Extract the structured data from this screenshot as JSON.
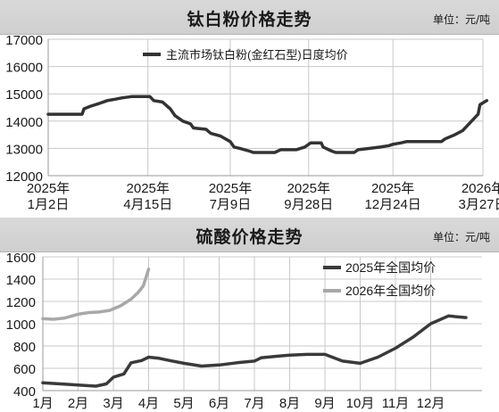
{
  "chart_data": [
    {
      "type": "line",
      "title": "钛白粉价格走势",
      "unit_label": "单位：元/吨",
      "ylim": [
        12000,
        17000
      ],
      "yticks": [
        12000,
        13000,
        14000,
        15000,
        16000,
        17000
      ],
      "grid": true,
      "legend_position": "top-center",
      "x_ticks": [
        {
          "line1": "2025年",
          "line2": "1月2日",
          "date": "2025-01-02"
        },
        {
          "line1": "2025年",
          "line2": "4月15日",
          "date": "2025-04-15"
        },
        {
          "line1": "2025年",
          "line2": "7月9日",
          "date": "2025-07-09"
        },
        {
          "line1": "2025年",
          "line2": "9月28日",
          "date": "2025-09-28"
        },
        {
          "line1": "2025年",
          "line2": "12月24日",
          "date": "2025-12-24"
        },
        {
          "line1": "2026年",
          "line2": "3月27日",
          "date": "2026-03-27"
        }
      ],
      "series": [
        {
          "name": "主流市场钛白粉(金红石型)日度均价",
          "color": "#333333",
          "points": [
            [
              "2025-01-02",
              14250
            ],
            [
              "2025-02-06",
              14250
            ],
            [
              "2025-02-08",
              14450
            ],
            [
              "2025-02-15",
              14550
            ],
            [
              "2025-02-24",
              14650
            ],
            [
              "2025-03-04",
              14750
            ],
            [
              "2025-03-12",
              14800
            ],
            [
              "2025-03-19",
              14850
            ],
            [
              "2025-03-29",
              14900
            ],
            [
              "2025-04-17",
              14900
            ],
            [
              "2025-04-21",
              14750
            ],
            [
              "2025-04-30",
              14700
            ],
            [
              "2025-05-08",
              14450
            ],
            [
              "2025-05-13",
              14200
            ],
            [
              "2025-05-21",
              14000
            ],
            [
              "2025-05-29",
              13900
            ],
            [
              "2025-06-01",
              13750
            ],
            [
              "2025-06-14",
              13700
            ],
            [
              "2025-06-19",
              13550
            ],
            [
              "2025-06-29",
              13450
            ],
            [
              "2025-07-09",
              13250
            ],
            [
              "2025-07-13",
              13050
            ],
            [
              "2025-07-19",
              13000
            ],
            [
              "2025-07-29",
              12900
            ],
            [
              "2025-08-02",
              12850
            ],
            [
              "2025-08-24",
              12850
            ],
            [
              "2025-08-30",
              12950
            ],
            [
              "2025-09-02",
              12950
            ],
            [
              "2025-09-15",
              12950
            ],
            [
              "2025-09-24",
              13050
            ],
            [
              "2025-09-30",
              13200
            ],
            [
              "2025-10-11",
              13200
            ],
            [
              "2025-10-13",
              13050
            ],
            [
              "2025-10-22",
              12900
            ],
            [
              "2025-10-26",
              12850
            ],
            [
              "2025-11-14",
              12850
            ],
            [
              "2025-11-18",
              12950
            ],
            [
              "2025-11-30",
              13000
            ],
            [
              "2025-12-11",
              13050
            ],
            [
              "2025-12-20",
              13100
            ],
            [
              "2025-12-24",
              13150
            ],
            [
              "2026-01-01",
              13200
            ],
            [
              "2026-01-07",
              13250
            ],
            [
              "2026-02-12",
              13250
            ],
            [
              "2026-02-16",
              13350
            ],
            [
              "2026-02-26",
              13500
            ],
            [
              "2026-03-06",
              13650
            ],
            [
              "2026-03-14",
              13950
            ],
            [
              "2026-03-22",
              14250
            ],
            [
              "2026-03-24",
              14600
            ],
            [
              "2026-03-31",
              14750
            ]
          ]
        }
      ]
    },
    {
      "type": "line",
      "title": "硫酸价格走势",
      "unit_label": "单位：元/吨",
      "ylim": [
        400,
        1600
      ],
      "yticks": [
        400,
        600,
        800,
        1000,
        1200,
        1400,
        1600
      ],
      "grid": true,
      "legend_position": "top-right",
      "categories": [
        "1月",
        "2月",
        "3月",
        "4月",
        "5月",
        "6月",
        "7月",
        "8月",
        "9月",
        "10月",
        "11月",
        "12月"
      ],
      "series": [
        {
          "name": "2025年全国均价",
          "color": "#3a3a3a",
          "points": [
            [
              1.0,
              470
            ],
            [
              1.5,
              460
            ],
            [
              2.0,
              450
            ],
            [
              2.5,
              440
            ],
            [
              2.8,
              460
            ],
            [
              3.0,
              520
            ],
            [
              3.3,
              550
            ],
            [
              3.5,
              650
            ],
            [
              3.8,
              670
            ],
            [
              4.0,
              700
            ],
            [
              4.3,
              690
            ],
            [
              4.6,
              670
            ],
            [
              5.0,
              645
            ],
            [
              5.5,
              620
            ],
            [
              6.0,
              630
            ],
            [
              6.5,
              650
            ],
            [
              7.0,
              665
            ],
            [
              7.2,
              695
            ],
            [
              7.7,
              710
            ],
            [
              8.0,
              718
            ],
            [
              8.5,
              725
            ],
            [
              9.0,
              725
            ],
            [
              9.5,
              665
            ],
            [
              10.0,
              645
            ],
            [
              10.5,
              700
            ],
            [
              11.0,
              780
            ],
            [
              11.5,
              880
            ],
            [
              12.0,
              1000
            ],
            [
              12.5,
              1070
            ],
            [
              13.0,
              1055
            ]
          ]
        },
        {
          "name": "2026年全国均价",
          "color": "#a8a8a8",
          "points": [
            [
              1.0,
              1045
            ],
            [
              1.3,
              1040
            ],
            [
              1.6,
              1050
            ],
            [
              2.0,
              1085
            ],
            [
              2.3,
              1100
            ],
            [
              2.6,
              1105
            ],
            [
              2.9,
              1120
            ],
            [
              3.2,
              1160
            ],
            [
              3.5,
              1220
            ],
            [
              3.7,
              1280
            ],
            [
              3.85,
              1340
            ],
            [
              4.0,
              1490
            ]
          ]
        }
      ]
    }
  ]
}
